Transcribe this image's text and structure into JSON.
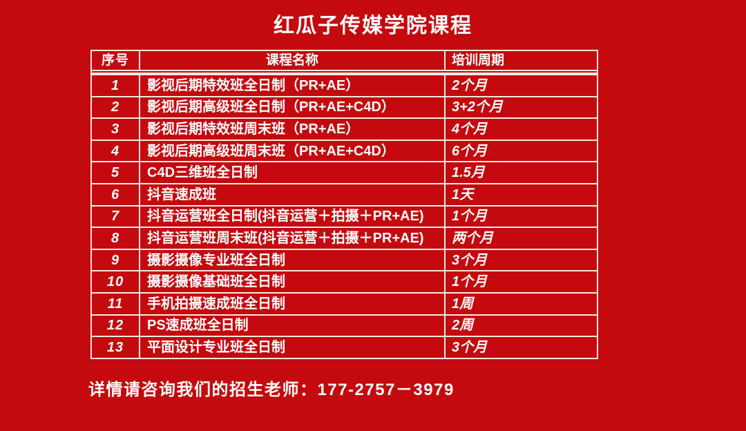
{
  "page": {
    "title": "红瓜子传媒学院课程",
    "background_color": "#c40a0e",
    "grid_line_color": "#f6ede4",
    "text_color": "#ffffff"
  },
  "table": {
    "headers": [
      "序号",
      "课程名称",
      "培训周期"
    ],
    "rows": [
      {
        "no": "1",
        "course": "影视后期特效班全日制（PR+AE）",
        "period": "2个月"
      },
      {
        "no": "2",
        "course": "影视后期高级班全日制（PR+AE+C4D）",
        "period": "3+2个月"
      },
      {
        "no": "3",
        "course": "影视后期特效班周末班（PR+AE）",
        "period": "4个月"
      },
      {
        "no": "4",
        "course": "影视后期高级班周末班（PR+AE+C4D）",
        "period": "6个月"
      },
      {
        "no": "5",
        "course": "C4D三维班全日制",
        "period": "1.5月"
      },
      {
        "no": "6",
        "course": "抖音速成班",
        "period": "1天"
      },
      {
        "no": "7",
        "course": "抖音运营班全日制(抖音运营＋拍摄＋PR+AE)",
        "period": "1个月"
      },
      {
        "no": "8",
        "course": "抖音运营班周末班(抖音运营＋拍摄＋PR+AE)",
        "period": "两个月"
      },
      {
        "no": "9",
        "course": "摄影摄像专业班全日制",
        "period": "3个月"
      },
      {
        "no": "10",
        "course": "摄影摄像基础班全日制",
        "period": "1个月"
      },
      {
        "no": "11",
        "course": "手机拍摄速成班全日制",
        "period": "1周"
      },
      {
        "no": "12",
        "course": "PS速成班全日制",
        "period": "2周"
      },
      {
        "no": "13",
        "course": "平面设计专业班全日制",
        "period": "3个月"
      }
    ]
  },
  "footer": {
    "contact": "详情请咨询我们的招生老师：177-2757－3979"
  }
}
